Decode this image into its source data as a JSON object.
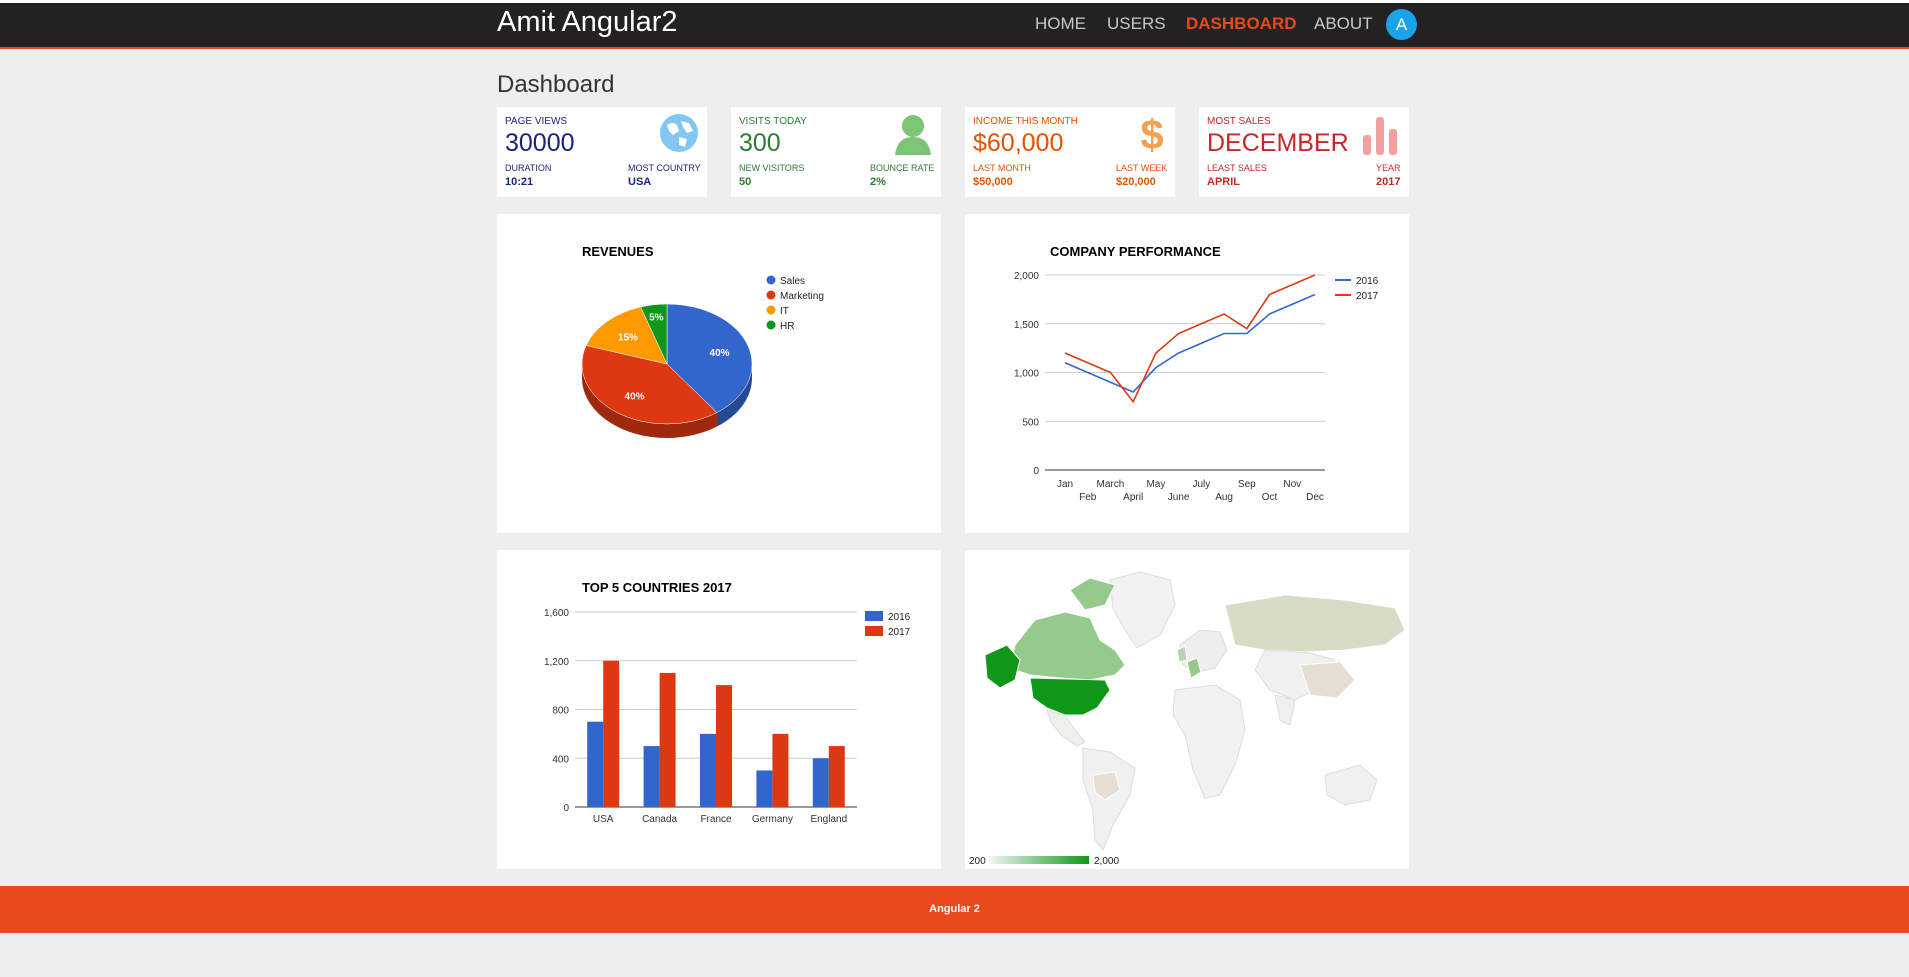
{
  "app": {
    "title": "Amit Angular2",
    "avatar_letter": "A"
  },
  "nav": {
    "items": [
      "HOME",
      "USERS",
      "DASHBOARD",
      "ABOUT"
    ],
    "active": "DASHBOARD"
  },
  "page": {
    "title": "Dashboard"
  },
  "colors": {
    "accent": "#e8491d",
    "navbar": "#222222",
    "blue": "#3366cc",
    "red": "#dc3912",
    "orange": "#ff9900",
    "green": "#109618"
  },
  "cards": [
    {
      "title": "PAGE VIEWS",
      "value": "30000",
      "left_label": "DURATION",
      "left_value": "10:21",
      "right_label": "MOST COUNTRY",
      "right_value": "USA",
      "color": "#1a237e",
      "icon": "globe-icon"
    },
    {
      "title": "VISITS TODAY",
      "value": "300",
      "left_label": "NEW VISITORS",
      "left_value": "50",
      "right_label": "BOUNCE RATE",
      "right_value": "2%",
      "color": "#2e7d32",
      "icon": "user-icon"
    },
    {
      "title": "INCOME THIS MONTH",
      "value": "$60,000",
      "left_label": "LAST MONTH",
      "left_value": "$50,000",
      "right_label": "LAST WEEK",
      "right_value": "$20,000",
      "color": "#e65100",
      "icon": "dollar-icon"
    },
    {
      "title": "MOST SALES",
      "value": "DECEMBER",
      "left_label": "LEAST SALES",
      "left_value": "APRIL",
      "right_label": "YEAR",
      "right_value": "2017",
      "color": "#c62828",
      "icon": "bar-chart-icon"
    }
  ],
  "chart_data": [
    {
      "type": "pie",
      "title": "REVENUES",
      "categories": [
        "Sales",
        "Marketing",
        "IT",
        "HR"
      ],
      "values": [
        40,
        40,
        15,
        5
      ],
      "labels": [
        "40%",
        "40%",
        "15%",
        "5%"
      ],
      "colors": [
        "#3366cc",
        "#dc3912",
        "#ff9900",
        "#109618"
      ],
      "legend": "right"
    },
    {
      "type": "line",
      "title": "COMPANY PERFORMANCE",
      "categories": [
        "Jan",
        "Feb",
        "March",
        "April",
        "May",
        "June",
        "July",
        "Aug",
        "Sep",
        "Oct",
        "Nov",
        "Dec"
      ],
      "series": [
        {
          "name": "2016",
          "values": [
            1100,
            1000,
            900,
            800,
            1050,
            1200,
            1300,
            1400,
            1400,
            1600,
            1700,
            1800
          ],
          "color": "#3366cc"
        },
        {
          "name": "2017",
          "values": [
            1200,
            1100,
            1000,
            700,
            1200,
            1400,
            1500,
            1600,
            1450,
            1800,
            1900,
            2000
          ],
          "color": "#dc3912"
        }
      ],
      "yticks": [
        "0",
        "500",
        "1,000",
        "1,500",
        "2,000"
      ],
      "ylim": [
        0,
        2000
      ],
      "legend": "right"
    },
    {
      "type": "bar",
      "title": "TOP 5 COUNTRIES 2017",
      "categories": [
        "USA",
        "Canada",
        "France",
        "Germany",
        "England"
      ],
      "series": [
        {
          "name": "2016",
          "values": [
            700,
            500,
            600,
            300,
            400
          ],
          "color": "#3366cc"
        },
        {
          "name": "2017",
          "values": [
            1200,
            1100,
            1000,
            600,
            500
          ],
          "color": "#dc3912"
        }
      ],
      "yticks": [
        "0",
        "400",
        "800",
        "1,200",
        "1,600"
      ],
      "ylim": [
        0,
        1600
      ],
      "legend": "top-right"
    },
    {
      "type": "heatmap",
      "title": "",
      "scale_min": "200",
      "scale_max": "2,000"
    }
  ],
  "footer": {
    "text": "Angular 2"
  }
}
